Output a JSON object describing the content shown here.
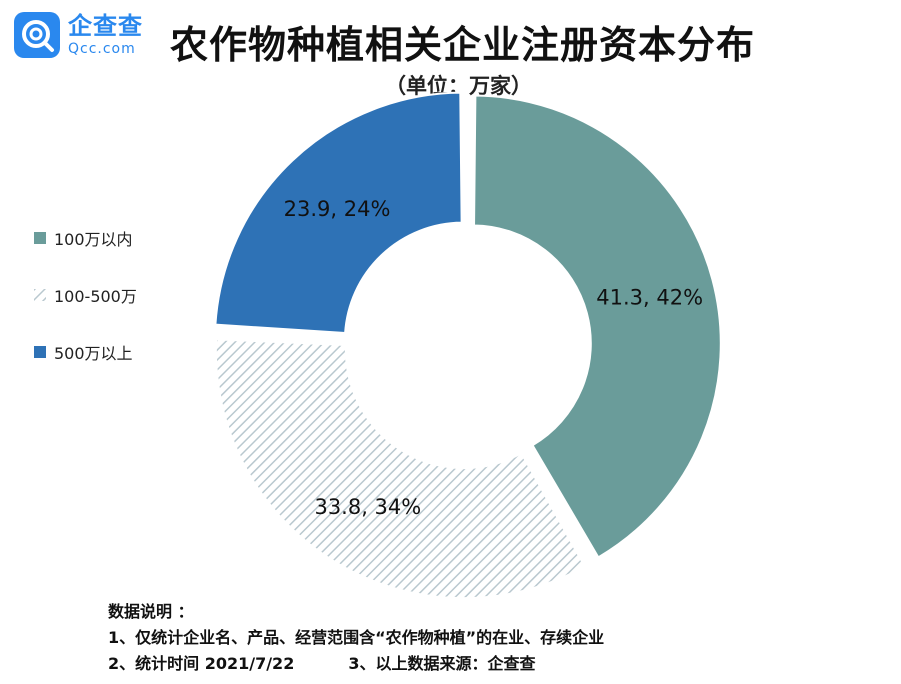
{
  "logo": {
    "name_cn": "企查查",
    "name_en": "Qcc.com"
  },
  "chart_data": {
    "type": "pie",
    "title": "农作物种植相关企业注册资本分布",
    "subtitle": "（单位：万家）",
    "donut": true,
    "legend_position": "left",
    "slices": [
      {
        "name": "100万以内",
        "value": 41.3,
        "percent": 42,
        "label": "41.3, 42%",
        "color": "#6a9c9a",
        "pattern": "solid"
      },
      {
        "name": "100-500万",
        "value": 33.8,
        "percent": 34,
        "label": "33.8, 34%",
        "color": "#c9d5da",
        "pattern": "diagonal-stripes"
      },
      {
        "name": "500万以上",
        "value": 23.9,
        "percent": 24,
        "label": "23.9, 24%",
        "color": "#2e72b6",
        "pattern": "solid"
      }
    ]
  },
  "notes": {
    "heading": "数据说明 ：",
    "line1": "1、仅统计企业名、产品、经营范围含“农作物种植”的在业、存续企业",
    "line2a": "2、统计时间 2021/7/22",
    "line2b": "3、以上数据来源：企查查"
  }
}
